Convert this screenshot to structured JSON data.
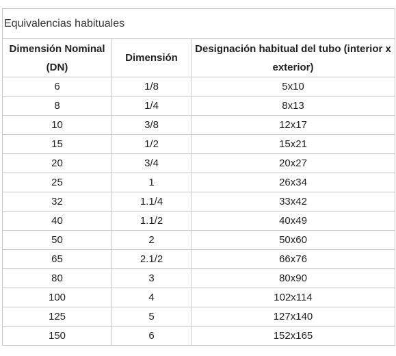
{
  "caption": "Equivalencias habituales",
  "headers": [
    "Dimensión Nominal (DN)",
    "Dimensión",
    "Designación habitual del tubo (interior x exterior)"
  ],
  "rows": [
    [
      "6",
      "1/8",
      "5x10"
    ],
    [
      "8",
      "1/4",
      "8x13"
    ],
    [
      "10",
      "3/8",
      "12x17"
    ],
    [
      "15",
      "1/2",
      "15x21"
    ],
    [
      "20",
      "3/4",
      "20x27"
    ],
    [
      "25",
      "1",
      "26x34"
    ],
    [
      "32",
      "1.1/4",
      "33x42"
    ],
    [
      "40",
      "1.1/2",
      "40x49"
    ],
    [
      "50",
      "2",
      "50x60"
    ],
    [
      "65",
      "2.1/2",
      "66x76"
    ],
    [
      "80",
      "3",
      "80x90"
    ],
    [
      "100",
      "4",
      "102x114"
    ],
    [
      "125",
      "5",
      "127x140"
    ],
    [
      "150",
      "6",
      "152x165"
    ]
  ]
}
